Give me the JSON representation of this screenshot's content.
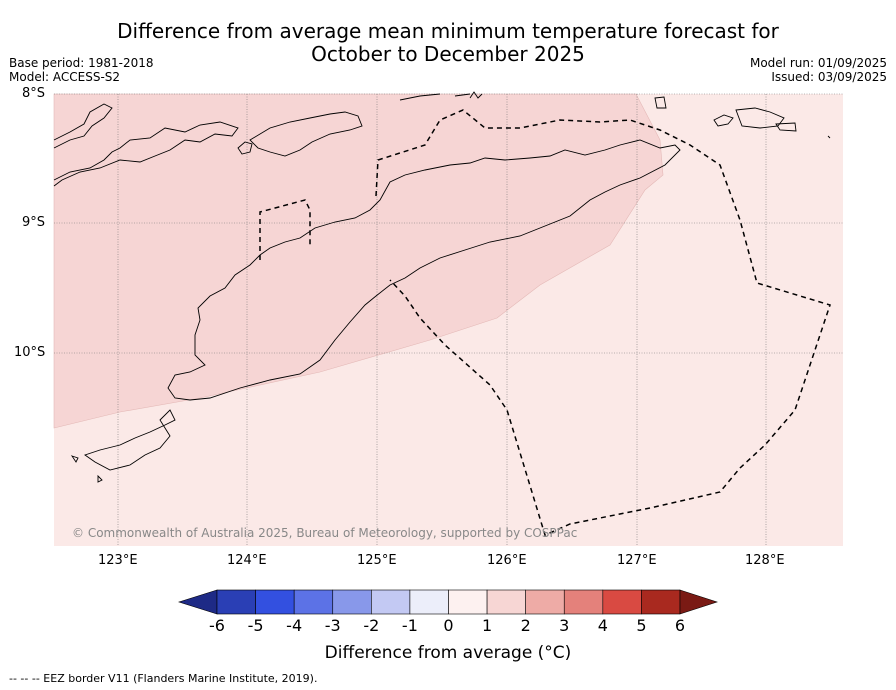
{
  "title_line1": "Difference from average mean minimum temperature forecast for",
  "title_line2": "October to December 2025",
  "base_period": "Base period: 1981-2018",
  "model": "Model: ACCESS-S2",
  "model_run": "Model run: 01/09/2025",
  "issued": "Issued: 03/09/2025",
  "map": {
    "lat_labels": [
      "8°S",
      "9°S",
      "10°S"
    ],
    "lon_labels": [
      "123°E",
      "124°E",
      "125°E",
      "126°E",
      "127°E",
      "128°E"
    ],
    "copyright": "© Commonwealth of Australia 2025, Bureau of Meteorology, supported by COSPPac",
    "region_colors": {
      "bin_0_1": "#fbe9e7",
      "bin_1_2": "#f6d5d4"
    }
  },
  "colorbar": {
    "ticks": [
      "-6",
      "-5",
      "-4",
      "-3",
      "-2",
      "-1",
      "0",
      "1",
      "2",
      "3",
      "4",
      "5",
      "6"
    ],
    "colors": [
      "#1e2a86",
      "#2a3fb5",
      "#3350e0",
      "#5c72e6",
      "#8898ea",
      "#c3c9f3",
      "#eceefa",
      "#fdf1f0",
      "#f7d6d4",
      "#eeaba6",
      "#e4817b",
      "#d94a42",
      "#a9291f",
      "#7a1a14"
    ],
    "label": "Difference from average (°C)"
  },
  "footer": "--  --  -- EEZ border V11 (Flanders Marine Institute, 2019)."
}
